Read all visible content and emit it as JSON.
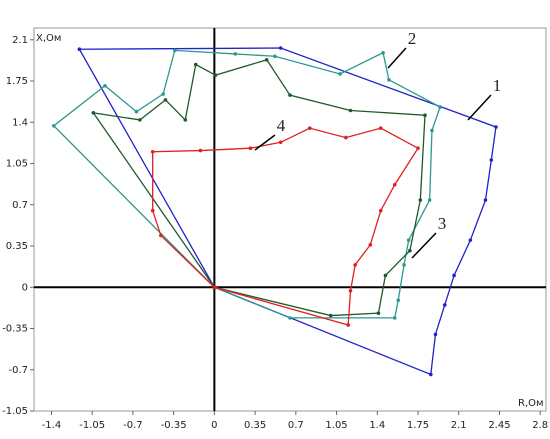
{
  "chart_data": {
    "type": "line",
    "x_label": "R,Ом",
    "y_label": "X,Ом",
    "xlim": [
      -1.55,
      2.85
    ],
    "ylim": [
      -1.05,
      2.2
    ],
    "xticks": [
      -1.4,
      -1.05,
      -0.7,
      -0.35,
      0,
      0.35,
      0.7,
      1.05,
      1.4,
      1.75,
      2.1,
      2.45,
      2.8
    ],
    "yticks": [
      -1.05,
      -0.7,
      -0.35,
      0,
      0.35,
      0.7,
      1.05,
      1.4,
      1.75,
      2.1
    ],
    "series": [
      {
        "name": "1",
        "color": "#2222cc",
        "x": [
          0,
          -1.16,
          0.57,
          2.42,
          2.38,
          2.33,
          2.2,
          2.06,
          1.98,
          1.9,
          1.86,
          0
        ],
        "values": [
          0,
          2.02,
          2.03,
          1.36,
          1.08,
          0.74,
          0.4,
          0.1,
          -0.15,
          -0.4,
          -0.74,
          0
        ]
      },
      {
        "name": "2",
        "color": "#2a9a8f",
        "x": [
          0,
          -1.38,
          -0.94,
          -0.67,
          -0.44,
          -0.34,
          0.18,
          0.52,
          1.08,
          1.45,
          1.5,
          1.94,
          1.87,
          1.85,
          1.67,
          1.63,
          1.58,
          1.55,
          0.65,
          0
        ],
        "values": [
          0,
          1.37,
          1.71,
          1.49,
          1.64,
          2.01,
          1.98,
          1.96,
          1.81,
          1.99,
          1.76,
          1.53,
          1.33,
          0.74,
          0.4,
          0.19,
          -0.11,
          -0.26,
          -0.26,
          0
        ]
      },
      {
        "name": "3",
        "color": "#1f5a2a",
        "x": [
          0,
          -1.04,
          -0.64,
          -0.42,
          -0.25,
          -0.16,
          0.01,
          0.45,
          0.65,
          1.17,
          1.81,
          1.77,
          1.68,
          1.47,
          1.41,
          1.0,
          0
        ],
        "values": [
          0,
          1.48,
          1.42,
          1.59,
          1.42,
          1.89,
          1.8,
          1.93,
          1.63,
          1.5,
          1.46,
          0.74,
          0.31,
          0.1,
          -0.22,
          -0.24,
          0
        ]
      },
      {
        "name": "4",
        "color": "#e02020",
        "x": [
          0,
          -0.46,
          -0.53,
          -0.53,
          -0.12,
          0.31,
          0.57,
          0.82,
          1.13,
          1.43,
          1.75,
          1.55,
          1.43,
          1.34,
          1.21,
          1.17,
          1.15,
          0
        ],
        "values": [
          0,
          0.44,
          0.65,
          1.15,
          1.16,
          1.18,
          1.23,
          1.35,
          1.27,
          1.35,
          1.18,
          0.87,
          0.65,
          0.36,
          0.19,
          -0.03,
          -0.32,
          0
        ]
      }
    ]
  }
}
